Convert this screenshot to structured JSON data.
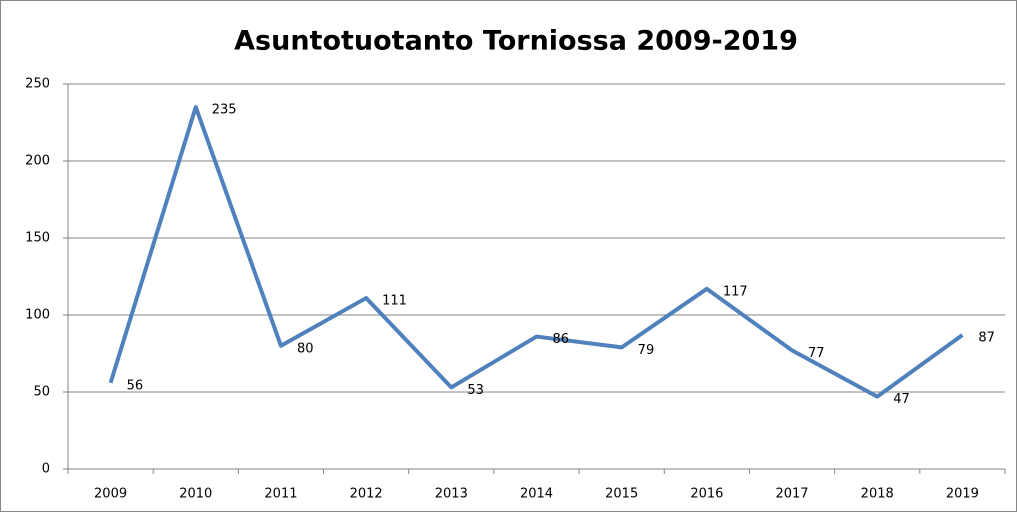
{
  "chart_data": {
    "type": "line",
    "title": "Asuntotuotanto Torniossa 2009-2019",
    "categories": [
      "2009",
      "2010",
      "2011",
      "2012",
      "2013",
      "2014",
      "2015",
      "2016",
      "2017",
      "2018",
      "2019"
    ],
    "series": [
      {
        "name": "Asuntotuotanto",
        "color": "#4f81bd",
        "values": [
          56,
          235,
          80,
          111,
          53,
          86,
          79,
          117,
          77,
          47,
          87
        ]
      }
    ],
    "ylim": [
      0,
      250
    ],
    "yticks": [
      0,
      50,
      100,
      150,
      200,
      250
    ],
    "grid": true
  }
}
